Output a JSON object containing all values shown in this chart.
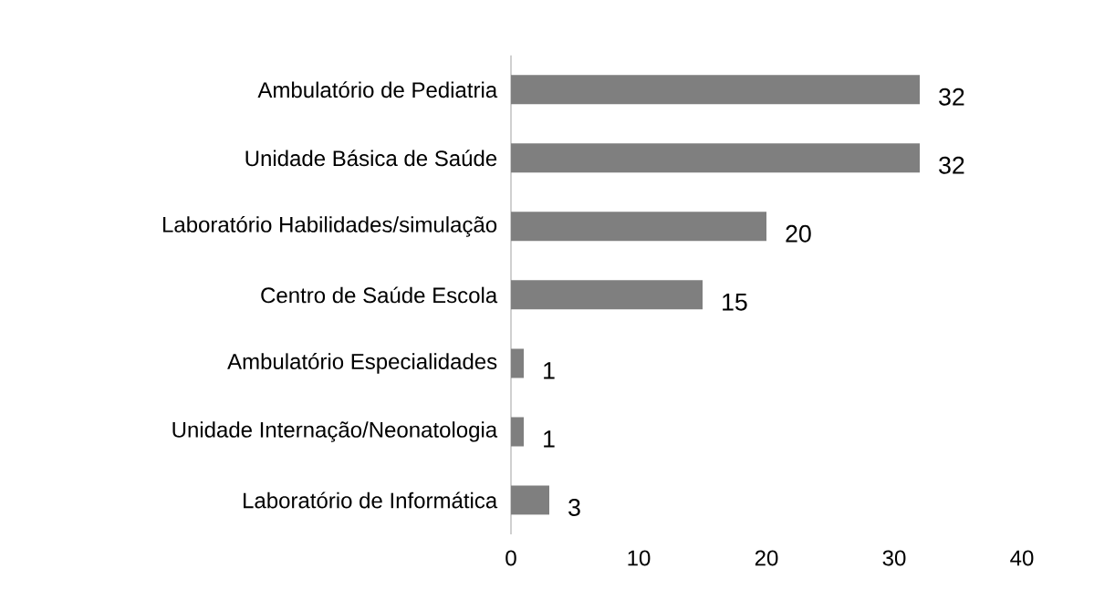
{
  "chart_data": {
    "type": "bar",
    "orientation": "horizontal",
    "categories": [
      "Ambulatório de Pediatria",
      "Unidade Básica de Saúde",
      "Laboratório Habilidades/simulação",
      "Centro de Saúde Escola",
      "Ambulatório Especialidades",
      "Unidade Internação/Neonatologia",
      "Laboratório de Informática"
    ],
    "values": [
      32,
      32,
      20,
      15,
      1,
      1,
      3
    ],
    "color": "#7f7f7f",
    "xlim": [
      0,
      40
    ],
    "xticks": [
      0,
      10,
      20,
      30,
      40
    ],
    "data_labels": true,
    "grid": false
  }
}
